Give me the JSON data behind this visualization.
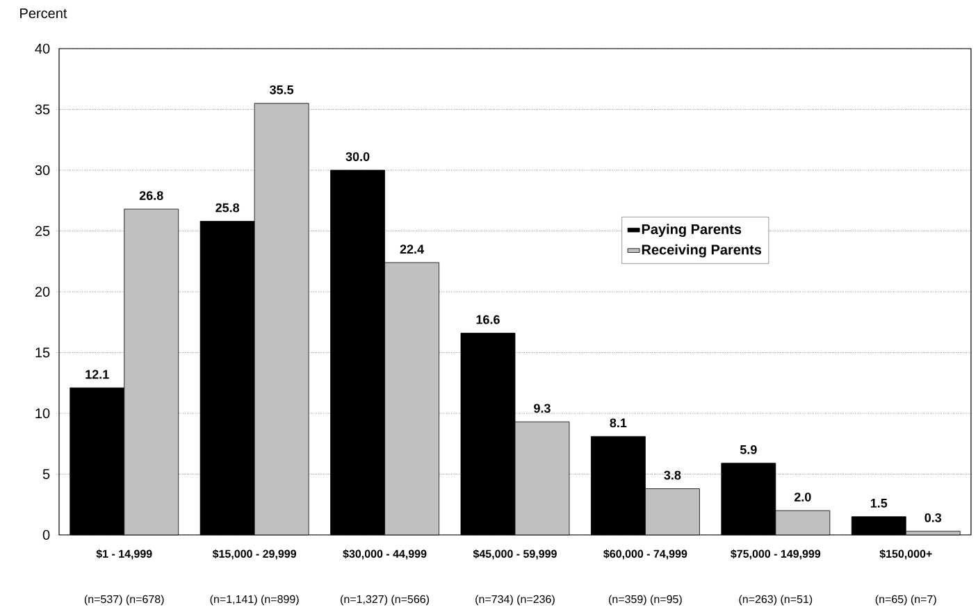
{
  "chart_data": {
    "type": "bar",
    "ylabel": "Percent",
    "categories": [
      "$1 - 14,999",
      "$15,000 - 29,999",
      "$30,000 - 44,999",
      "$45,000 - 59,999",
      "$60,000 - 74,999",
      "$75,000 - 149,999",
      "$150,000+"
    ],
    "series": [
      {
        "name": "Paying Parents",
        "color": "#000000",
        "values": [
          12.1,
          25.8,
          30.0,
          16.6,
          8.1,
          5.9,
          1.5
        ],
        "value_labels": [
          "12.1",
          "25.8",
          "30.0",
          "16.6",
          "8.1",
          "5.9",
          "1.5"
        ]
      },
      {
        "name": "Receiving Parents",
        "color": "#c0c0c0",
        "values": [
          26.8,
          35.5,
          22.4,
          9.3,
          3.8,
          2.0,
          0.3
        ],
        "value_labels": [
          "26.8",
          "35.5",
          "22.4",
          "9.3",
          "3.8",
          "2.0",
          "0.3"
        ]
      }
    ],
    "annotations": [
      "(n=537) (n=678)",
      "(n=1,141) (n=899)",
      "(n=1,327) (n=566)",
      "(n=734) (n=236)",
      "(n=359) (n=95)",
      "(n=263) (n=51)",
      "(n=65) (n=7)"
    ],
    "ylim": [
      0,
      40
    ],
    "yticks": [
      0,
      5,
      10,
      15,
      20,
      25,
      30,
      35,
      40
    ],
    "grid": "y",
    "legend": "right"
  }
}
